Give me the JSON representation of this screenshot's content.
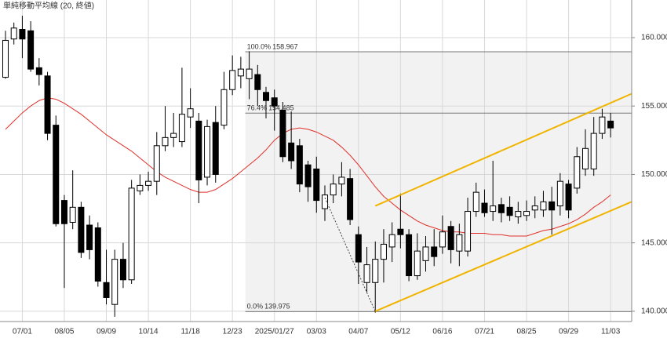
{
  "chart_data": {
    "type": "candlestick",
    "categories": [
      null,
      null,
      "07/01",
      null,
      null,
      null,
      null,
      "08/05",
      null,
      null,
      null,
      null,
      "09/09",
      null,
      null,
      null,
      null,
      "10/14",
      null,
      null,
      null,
      null,
      "11/18",
      null,
      null,
      null,
      null,
      "12/23",
      null,
      null,
      null,
      null,
      "2025/01/27",
      null,
      null,
      null,
      null,
      "03/03",
      null,
      null,
      null,
      null,
      "04/07",
      null,
      null,
      null,
      null,
      "05/12",
      null,
      null,
      null,
      null,
      "06/16",
      null,
      null,
      null,
      null,
      "07/21",
      null,
      null,
      null,
      null,
      "08/25",
      null,
      null,
      null,
      null,
      "09/29",
      null,
      null,
      null,
      null,
      "11/03"
    ],
    "open": [
      157.1,
      159.9,
      160.6,
      160.5,
      157.8,
      157.2,
      153.6,
      148.1,
      146.5,
      147.6,
      146.3,
      146.1,
      142.1,
      140.5,
      143.8,
      142.3,
      148.8,
      149.2,
      149.5,
      152.1,
      152.7,
      152.4,
      154.2,
      153.9,
      149.8,
      153.8,
      153.6,
      156.2,
      157.2,
      157.0,
      157.3,
      156.0,
      155.6,
      154.7,
      152.3,
      152.1,
      150.7,
      150.4,
      147.5,
      148.5,
      149.3,
      149.7,
      145.6,
      142.1,
      142.1,
      143.8,
      144.7,
      146.0,
      145.6,
      142.6,
      143.7,
      144.7,
      144.7,
      146.2,
      144.4,
      144.4,
      147.3,
      147.9,
      147.3,
      147.8,
      147.6,
      146.9,
      147.0,
      147.4,
      147.4,
      148.0,
      147.7,
      149.3,
      149.0,
      150.4,
      150.4,
      153.0,
      153.9
    ],
    "high": [
      160.5,
      161.1,
      161.6,
      161.2,
      158.5,
      157.5,
      154.3,
      148.5,
      150.3,
      148.0,
      147.0,
      146.5,
      144.5,
      144.5,
      145.0,
      149.6,
      150.0,
      150.2,
      153.1,
      155.0,
      154.5,
      157.8,
      156.3,
      154.5,
      154.0,
      155.0,
      157.5,
      158.7,
      158.6,
      159.0,
      158.0,
      156.4,
      156.2,
      155.3,
      154.6,
      152.6,
      151.0,
      151.3,
      149.2,
      150.0,
      150.9,
      150.4,
      146.2,
      144.7,
      145.1,
      146.0,
      146.5,
      148.6,
      146.0,
      145.7,
      145.5,
      146.0,
      147.0,
      146.6,
      146.4,
      148.3,
      149.4,
      148.9,
      151.0,
      148.3,
      148.4,
      148.0,
      148.1,
      148.4,
      148.8,
      149.1,
      150.1,
      149.6,
      152.0,
      153.3,
      154.2,
      154.8,
      154.5
    ],
    "low": [
      157.0,
      159.5,
      158.5,
      157.5,
      156.5,
      152.5,
      146.2,
      141.7,
      146.0,
      143.9,
      143.8,
      141.8,
      140.5,
      139.6,
      141.7,
      142.0,
      148.5,
      148.8,
      148.5,
      151.7,
      152.0,
      152.0,
      153.4,
      147.9,
      149.2,
      149.4,
      153.3,
      155.8,
      156.3,
      155.5,
      155.0,
      154.1,
      153.2,
      150.9,
      150.4,
      148.7,
      148.0,
      147.2,
      146.6,
      147.9,
      148.4,
      146.3,
      142.0,
      141.4,
      139.9,
      142.1,
      143.6,
      144.6,
      142.2,
      142.3,
      142.9,
      143.3,
      144.2,
      143.5,
      143.3,
      144.0,
      146.9,
      146.9,
      146.6,
      146.5,
      146.6,
      146.4,
      146.6,
      146.8,
      146.9,
      145.6,
      147.0,
      146.8,
      148.6,
      149.9,
      149.9,
      152.6,
      152.7
    ],
    "close": [
      159.8,
      160.7,
      159.9,
      157.7,
      157.3,
      153.0,
      146.4,
      146.4,
      147.6,
      144.3,
      144.5,
      142.2,
      141.0,
      143.8,
      142.3,
      149.0,
      149.2,
      149.5,
      152.1,
      152.7,
      153.0,
      154.4,
      154.8,
      149.6,
      153.5,
      150.0,
      156.2,
      157.6,
      157.7,
      157.7,
      156.2,
      155.4,
      155.0,
      151.3,
      151.0,
      149.3,
      149.1,
      148.1,
      148.5,
      149.3,
      149.8,
      146.7,
      143.6,
      143.4,
      143.8,
      144.9,
      145.6,
      145.6,
      142.6,
      144.4,
      144.7,
      144.0,
      145.8,
      144.5,
      145.6,
      147.3,
      148.7,
      147.2,
      147.7,
      147.2,
      147.0,
      147.3,
      147.3,
      147.7,
      148.0,
      147.4,
      149.5,
      147.4,
      151.3,
      151.9,
      153.0,
      154.2,
      153.4
    ],
    "up_color": "#ffffff",
    "down_color": "#000000",
    "series": [
      {
        "name": "単純移動平均線 (20, 終値)",
        "color": "#e0302a",
        "values": [
          153.3,
          153.9,
          154.5,
          155.0,
          155.4,
          155.6,
          155.5,
          155.2,
          154.8,
          154.4,
          153.9,
          153.4,
          152.9,
          152.5,
          152.1,
          151.7,
          151.2,
          150.7,
          150.2,
          149.8,
          149.5,
          149.2,
          148.9,
          148.7,
          148.7,
          148.9,
          149.3,
          149.7,
          150.2,
          150.7,
          151.2,
          151.8,
          152.5,
          153.0,
          153.3,
          153.4,
          153.3,
          153.1,
          152.8,
          152.5,
          152.0,
          151.4,
          150.7,
          149.9,
          149.1,
          148.4,
          147.9,
          147.4,
          147.0,
          146.6,
          146.3,
          146.1,
          145.9,
          145.8,
          145.8,
          145.7,
          145.7,
          145.7,
          145.6,
          145.6,
          145.5,
          145.5,
          145.5,
          145.7,
          145.9,
          146.0,
          146.2,
          146.4,
          146.7,
          147.1,
          147.6,
          148.0,
          148.5
        ]
      }
    ],
    "fibonacci": {
      "start": 29,
      "levels": [
        {
          "ratio": "100.0%",
          "value": 158.967
        },
        {
          "ratio": "76.4%",
          "value": 154.485
        },
        {
          "ratio": "0.0%",
          "value": 139.975
        }
      ]
    },
    "trendlines": [
      {
        "x": [
          44,
          74.5
        ],
        "y": [
          147.7,
          155.9
        ],
        "color": "#f0b400",
        "style": "solid"
      },
      {
        "x": [
          44,
          74.5
        ],
        "y": [
          140.0,
          148.0
        ],
        "color": "#f0b400",
        "style": "solid"
      },
      {
        "x": [
          38,
          44
        ],
        "y": [
          148.3,
          139.975
        ],
        "color": "#444444",
        "style": "dotted"
      }
    ],
    "ylim": [
      139.25,
      162.75
    ],
    "yticks": [
      {
        "value": 140,
        "label": "140.000"
      },
      {
        "value": 145,
        "label": "145.000"
      },
      {
        "value": 150,
        "label": "150.000"
      },
      {
        "value": 155,
        "label": "155.000"
      },
      {
        "value": 160,
        "label": "160.000"
      }
    ],
    "grid": true
  }
}
